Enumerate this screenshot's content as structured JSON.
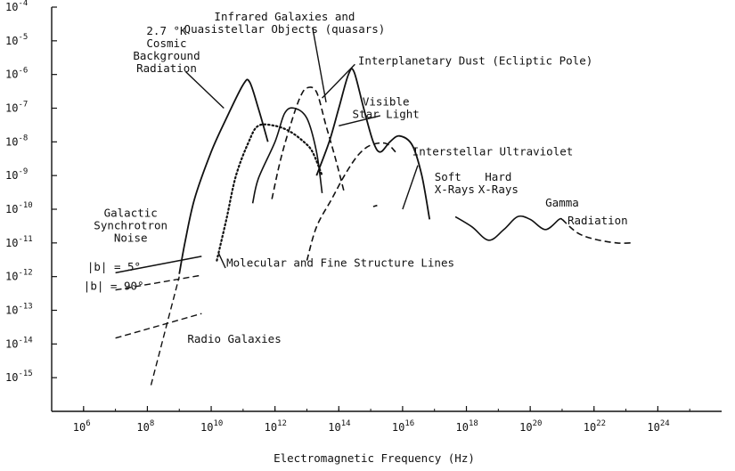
{
  "chart_data": {
    "type": "line",
    "title": "",
    "xlabel": "Electromagnetic Frequency (Hz)",
    "ylabel": "",
    "x_scale": "log",
    "y_scale": "log",
    "xlim": [
      100000.0,
      1e+26
    ],
    "ylim": [
      1e-16,
      0.0001
    ],
    "grid": false,
    "x_ticks": [
      {
        "value": 1000000.0,
        "base": "10",
        "exp": "6"
      },
      {
        "value": 100000000.0,
        "base": "10",
        "exp": "8"
      },
      {
        "value": 10000000000.0,
        "base": "10",
        "exp": "10"
      },
      {
        "value": 1000000000000.0,
        "base": "10",
        "exp": "12"
      },
      {
        "value": 100000000000000.0,
        "base": "10",
        "exp": "14"
      },
      {
        "value": 1e+16,
        "base": "10",
        "exp": "16"
      },
      {
        "value": 1e+18,
        "base": "10",
        "exp": "18"
      },
      {
        "value": 1e+20,
        "base": "10",
        "exp": "20"
      },
      {
        "value": 1e+22,
        "base": "10",
        "exp": "22"
      },
      {
        "value": 1e+24,
        "base": "10",
        "exp": "24"
      }
    ],
    "y_ticks": [
      {
        "value": 0.0001,
        "base": "10",
        "exp": "-4"
      },
      {
        "value": 1e-05,
        "base": "10",
        "exp": "-5"
      },
      {
        "value": 1e-06,
        "base": "10",
        "exp": "-6"
      },
      {
        "value": 1e-07,
        "base": "10",
        "exp": "-7"
      },
      {
        "value": 1e-08,
        "base": "10",
        "exp": "-8"
      },
      {
        "value": 1e-09,
        "base": "10",
        "exp": "-9"
      },
      {
        "value": 1e-10,
        "base": "10",
        "exp": "-10"
      },
      {
        "value": 1e-11,
        "base": "10",
        "exp": "-11"
      },
      {
        "value": 1e-12,
        "base": "10",
        "exp": "-12"
      },
      {
        "value": 1e-13,
        "base": "10",
        "exp": "-13"
      },
      {
        "value": 1e-14,
        "base": "10",
        "exp": "-14"
      },
      {
        "value": 1e-15,
        "base": "10",
        "exp": "-15"
      }
    ],
    "series": [
      {
        "style": "solid",
        "width": 1.8,
        "points": [
          [
            1000000000.0,
            1.2e-12
          ],
          [
            1500000000.0,
            1e-11
          ],
          [
            3000000000.0,
            2e-10
          ],
          [
            10000000000.0,
            5e-09
          ],
          [
            30000000000.0,
            5e-08
          ],
          [
            100000000000.0,
            5e-07
          ],
          [
            160000000000.0,
            6e-07
          ],
          [
            300000000000.0,
            1e-07
          ],
          [
            600000000000.0,
            1e-08
          ]
        ]
      },
      {
        "style": "solid",
        "width": 1.6,
        "points": [
          [
            200000000000.0,
            1.5e-10
          ],
          [
            300000000000.0,
            8e-10
          ],
          [
            1000000000000.0,
            1e-08
          ],
          [
            2000000000000.0,
            7e-08
          ],
          [
            4000000000000.0,
            1e-07
          ],
          [
            10000000000000.0,
            5e-08
          ],
          [
            20000000000000.0,
            5e-09
          ],
          [
            30000000000000.0,
            3e-10
          ]
        ]
      },
      {
        "style": "dashed",
        "width": 1.6,
        "points": [
          [
            800000000000.0,
            2e-10
          ],
          [
            1500000000000.0,
            3e-09
          ],
          [
            3000000000000.0,
            3e-08
          ],
          [
            6000000000000.0,
            2e-07
          ],
          [
            10000000000000.0,
            4e-07
          ],
          [
            20000000000000.0,
            3e-07
          ],
          [
            40000000000000.0,
            3e-08
          ],
          [
            80000000000000.0,
            3e-09
          ],
          [
            150000000000000.0,
            3e-10
          ]
        ]
      },
      {
        "style": "solid",
        "width": 1.8,
        "points": [
          [
            20000000000000.0,
            1e-09
          ],
          [
            50000000000000.0,
            1e-08
          ],
          [
            100000000000000.0,
            1e-07
          ],
          [
            200000000000000.0,
            1e-06
          ],
          [
            300000000000000.0,
            1.2e-06
          ],
          [
            600000000000000.0,
            1e-07
          ],
          [
            1200000000000000.0,
            1e-08
          ],
          [
            2000000000000000.0,
            5e-09
          ],
          [
            4000000000000000.0,
            1e-08
          ],
          [
            8000000000000000.0,
            1.5e-08
          ],
          [
            2e+16,
            8e-09
          ],
          [
            4e+16,
            1e-09
          ],
          [
            7e+16,
            5e-11
          ]
        ]
      },
      {
        "style": "dotted",
        "width": 2.2,
        "points": [
          [
            15000000000.0,
            3e-12
          ],
          [
            30000000000.0,
            5e-11
          ],
          [
            60000000000.0,
            1e-09
          ],
          [
            150000000000.0,
            1e-08
          ],
          [
            300000000000.0,
            3e-08
          ],
          [
            1000000000000.0,
            3e-08
          ],
          [
            3000000000000.0,
            2e-08
          ],
          [
            8000000000000.0,
            1e-08
          ],
          [
            15000000000000.0,
            5e-09
          ],
          [
            30000000000000.0,
            1e-09
          ]
        ]
      },
      {
        "style": "dashed",
        "width": 1.6,
        "points": [
          [
            10000000000000.0,
            3e-12
          ],
          [
            20000000000000.0,
            3e-11
          ],
          [
            60000000000000.0,
            2e-10
          ],
          [
            150000000000000.0,
            1e-09
          ],
          [
            400000000000000.0,
            4e-09
          ],
          [
            1000000000000000.0,
            8e-09
          ],
          [
            3000000000000000.0,
            9e-09
          ],
          [
            6000000000000000.0,
            5e-09
          ]
        ]
      },
      {
        "style": "solid",
        "width": 1.6,
        "points": [
          [
            4.5e+17,
            6e-11
          ],
          [
            1.5e+18,
            3e-11
          ],
          [
            5e+18,
            1.2e-11
          ],
          [
            1.5e+19,
            2.5e-11
          ],
          [
            4e+19,
            6e-11
          ],
          [
            1e+20,
            5e-11
          ],
          [
            3e+20,
            2.5e-11
          ],
          [
            8e+20,
            5e-11
          ],
          [
            1e+21,
            5e-11
          ]
        ]
      },
      {
        "style": "dashed",
        "width": 1.6,
        "points": [
          [
            1e+21,
            5e-11
          ],
          [
            3e+21,
            2e-11
          ],
          [
            1e+22,
            1.3e-11
          ],
          [
            5e+22,
            1e-11
          ],
          [
            1.5e+23,
            1e-11
          ]
        ]
      },
      {
        "style": "dashed",
        "width": 1.6,
        "points": [
          [
            1200000000000000.0,
            1.2e-10
          ],
          [
            1600000000000000.0,
            1.3e-10
          ]
        ]
      },
      {
        "style": "solid",
        "width": 1.5,
        "points": [
          [
            10000000.0,
            1.3e-12
          ],
          [
            5000000000.0,
            4e-12
          ]
        ]
      },
      {
        "style": "dashed",
        "width": 1.4,
        "points": [
          [
            10000000.0,
            4e-13
          ],
          [
            5000000000.0,
            1.1e-12
          ]
        ]
      },
      {
        "style": "dashed",
        "width": 1.4,
        "points": [
          [
            10000000.0,
            1.5e-14
          ],
          [
            5000000000.0,
            8e-14
          ]
        ]
      },
      {
        "style": "dashed",
        "width": 1.4,
        "points": [
          [
            130000000.0,
            6e-16
          ],
          [
            1000000000.0,
            1e-12
          ]
        ]
      }
    ],
    "annotations": [
      {
        "lines": [
          "2.7 °K",
          "Cosmic",
          "Background",
          "Radiation"
        ],
        "x": 400000000.0,
        "y": 1.5e-05,
        "anchor": "middle",
        "pointer": [
          [
            1600000000.0,
            1.2e-06
          ],
          [
            25000000000.0,
            1e-07
          ]
        ]
      },
      {
        "lines": [
          "Infrared Galaxies and",
          "Quasistellar Objects (quasars)"
        ],
        "x": 2000000000000.0,
        "y": 4e-05,
        "anchor": "middle",
        "pointer": [
          [
            15000000000000.0,
            2.5e-05
          ],
          [
            40000000000000.0,
            1.5e-07
          ]
        ]
      },
      {
        "lines": [
          "Interplanetary Dust (Ecliptic Pole)"
        ],
        "x": 400000000000000.0,
        "y": 2e-06,
        "anchor": "start",
        "pointer": [
          [
            320000000000000.0,
            2e-06
          ],
          [
            30000000000000.0,
            2e-07
          ]
        ]
      },
      {
        "lines": [
          "Visible",
          "Star Light"
        ],
        "x": 3000000000000000.0,
        "y": 1.2e-07,
        "anchor": "middle",
        "pointer": [
          [
            2000000000000000.0,
            6e-08
          ],
          [
            100000000000000.0,
            3e-08
          ]
        ]
      },
      {
        "lines": [
          "Interstellar Ultraviolet"
        ],
        "x": 2e+16,
        "y": 4e-09,
        "anchor": "start",
        "pointer": [
          [
            3e+16,
            2e-09
          ],
          [
            1e+16,
            1e-10
          ]
        ]
      },
      {
        "lines": [
          "Soft",
          "X-Rays"
        ],
        "x": 1e+17,
        "y": 7e-10,
        "anchor": "start"
      },
      {
        "lines": [
          "Hard",
          "X-Rays"
        ],
        "x": 1e+19,
        "y": 7e-10,
        "anchor": "middle"
      },
      {
        "lines": [
          "Gamma"
        ],
        "x": 1e+21,
        "y": 1.2e-10,
        "anchor": "middle"
      },
      {
        "lines": [
          "Radiation"
        ],
        "x": 1.3e+22,
        "y": 3.5e-11,
        "anchor": "middle"
      },
      {
        "lines": [
          "Galactic",
          "Synchrotron",
          "Noise"
        ],
        "x": 30000000.0,
        "y": 6e-11,
        "anchor": "middle"
      },
      {
        "lines": [
          "|b| = 5°"
        ],
        "x": 1300000.0,
        "y": 1.5e-12,
        "anchor": "start"
      },
      {
        "lines": [
          "|b| = 90°"
        ],
        "x": 1000000.0,
        "y": 4e-13,
        "anchor": "start"
      },
      {
        "lines": [
          "Molecular and Fine Structure Lines"
        ],
        "x": 30000000000.0,
        "y": 2e-12,
        "anchor": "start",
        "pointer": [
          [
            28000000000.0,
            1.8e-12
          ],
          [
            17000000000.0,
            5e-12
          ]
        ]
      },
      {
        "lines": [
          "Radio Galaxies"
        ],
        "x": 1800000000.0,
        "y": 1.1e-14,
        "anchor": "start"
      }
    ]
  }
}
